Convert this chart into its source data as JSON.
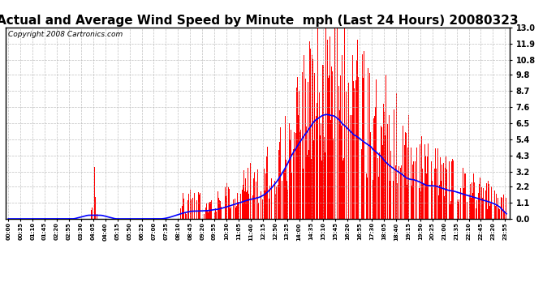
{
  "title": "Actual and Average Wind Speed by Minute  mph (Last 24 Hours) 20080323",
  "copyright_text": "Copyright 2008 Cartronics.com",
  "y_ticks": [
    0.0,
    1.1,
    2.2,
    3.2,
    4.3,
    5.4,
    6.5,
    7.6,
    8.7,
    9.8,
    10.8,
    11.9,
    13.0
  ],
  "ylim": [
    0.0,
    13.0
  ],
  "bar_color": "#ff0000",
  "line_color": "#0000ff",
  "background_color": "#ffffff",
  "grid_color": "#b0b0b0",
  "title_fontsize": 11,
  "copyright_fontsize": 6.5,
  "tick_interval_minutes": 35,
  "total_minutes": 1440
}
